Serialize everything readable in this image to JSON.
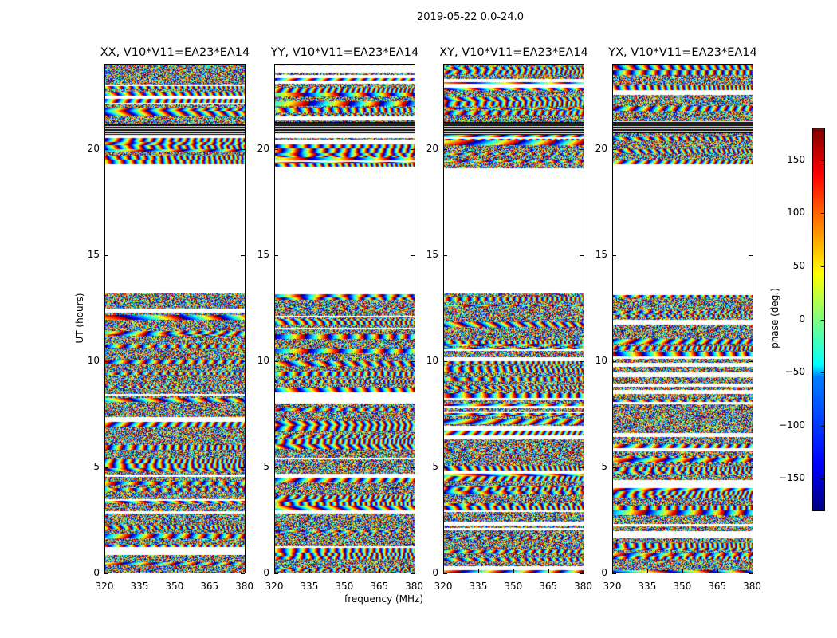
{
  "chart_data": {
    "type": "heatmap",
    "title": "2019-05-22 0.0-24.0",
    "xlabel": "frequency (MHz)",
    "ylabel": "UT (hours)",
    "xlim": [
      320,
      380.5
    ],
    "ylim": [
      0,
      24
    ],
    "xticks": [
      "320",
      "335",
      "350",
      "365",
      "380"
    ],
    "yticks": [
      "0",
      "5",
      "10",
      "15",
      "20"
    ],
    "panels": [
      {
        "title": "XX, V10*V11=EA23*EA14"
      },
      {
        "title": "YY, V10*V11=EA23*EA14"
      },
      {
        "title": "XY, V10*V11=EA23*EA14"
      },
      {
        "title": "YX, V10*V11=EA23*EA14"
      }
    ],
    "flagged_hours": [
      [
        13.2,
        19.3
      ]
    ],
    "colorbar": {
      "label": "phase (deg.)",
      "range": [
        -180,
        180
      ],
      "ticks": [
        "150",
        "100",
        "50",
        "0",
        "−50",
        "−100",
        "−150"
      ],
      "colormap": "jet"
    }
  }
}
